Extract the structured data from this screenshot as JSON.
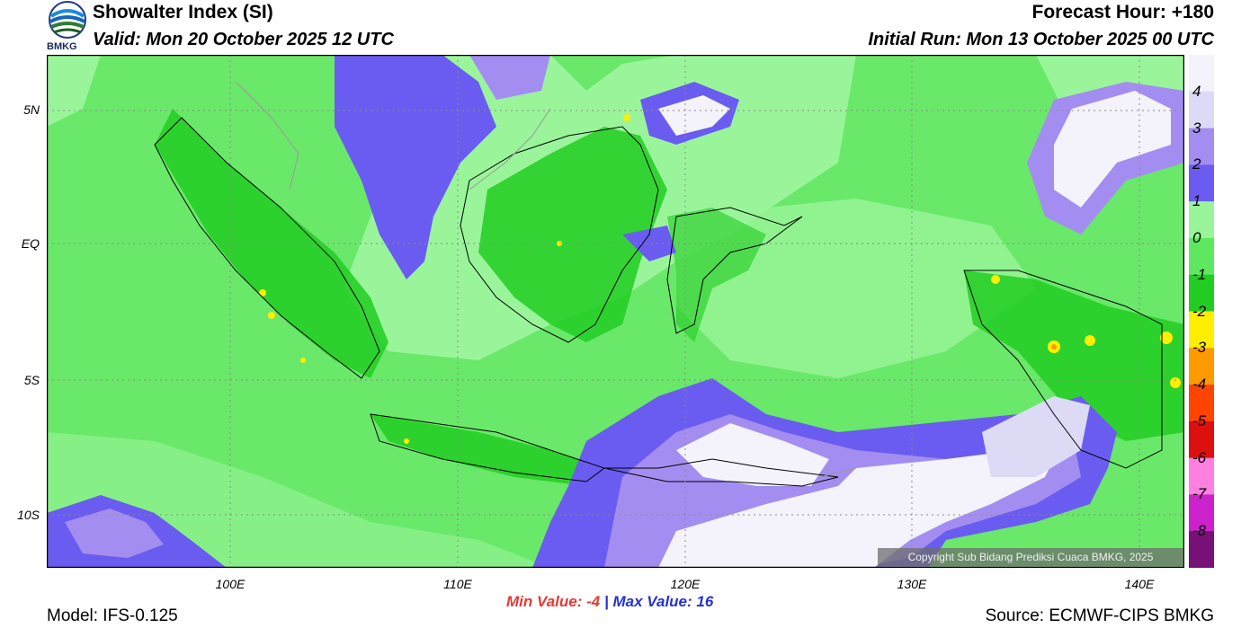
{
  "header": {
    "title": "Showalter Index (SI)",
    "valid": "Valid: Mon 20 October 2025 12 UTC",
    "forecast_hour": "Forecast Hour: +180",
    "initial_run": "Initial Run: Mon 13 October 2025 00 UTC",
    "logo_text": "BMKG"
  },
  "map": {
    "lat_labels": [
      "5N",
      "EQ",
      "5S",
      "10S"
    ],
    "lon_labels": [
      "100E",
      "110E",
      "120E",
      "130E",
      "140E"
    ],
    "copyright": "Copyright Sub Bidang Prediksi Cuaca BMKG, 2025"
  },
  "colorbar": {
    "labels": [
      "4",
      "3",
      "2",
      "1",
      "0",
      "-1",
      "-2",
      "-3",
      "-4",
      "-5",
      "-6",
      "-7",
      "-8"
    ],
    "colors": [
      "#f4f2fb",
      "#dcdaf5",
      "#a48df0",
      "#6a5cf0",
      "#9af59a",
      "#5fe85f",
      "#22cc22",
      "#ffee00",
      "#ff9900",
      "#ff4400",
      "#dd1010",
      "#ff80e0",
      "#cc22cc",
      "#771177"
    ]
  },
  "stats": {
    "min_label": "Min Value:",
    "min_value": "-4",
    "separator": "|",
    "max_label": "Max Value:",
    "max_value": "16"
  },
  "footer": {
    "model": "Model: IFS-0.125",
    "source": "Source: ECMWF-CIPS BMKG"
  }
}
